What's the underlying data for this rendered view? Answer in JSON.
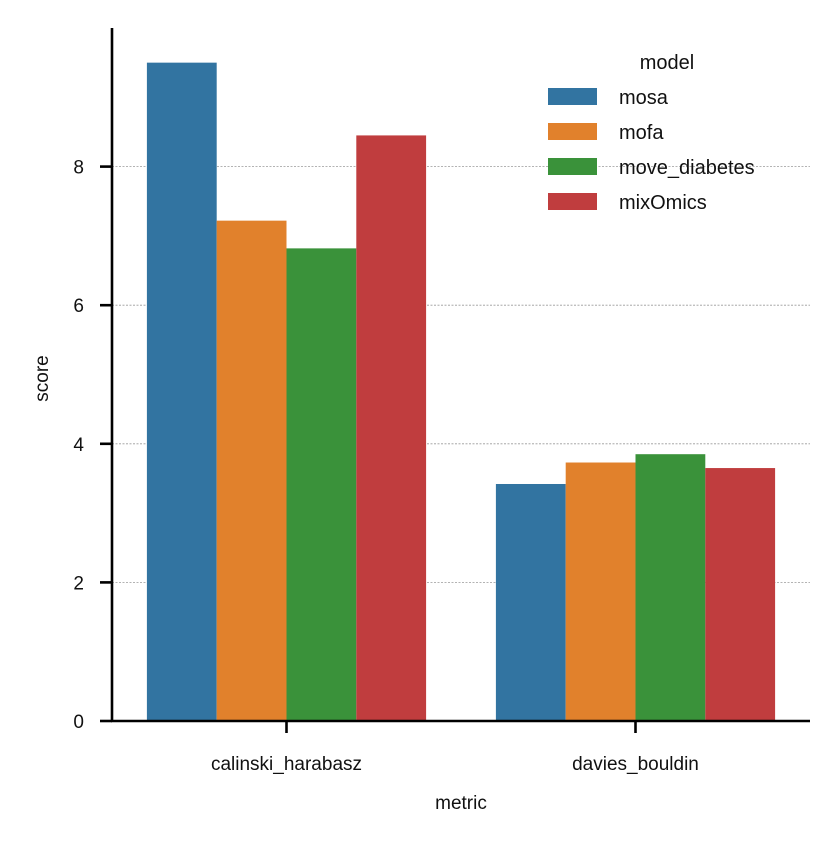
{
  "chart_data": {
    "type": "bar",
    "title": "",
    "xlabel": "metric",
    "ylabel": "score",
    "categories": [
      "calinski_harabasz",
      "davies_bouldin"
    ],
    "ylim": [
      0,
      10
    ],
    "yticks": [
      0,
      2,
      4,
      6,
      8
    ],
    "grid": true,
    "legend": {
      "title": "model",
      "placement": "top-right"
    },
    "series": [
      {
        "name": "mosa",
        "color": "#3274a1",
        "values": [
          9.5,
          3.42
        ]
      },
      {
        "name": "mofa",
        "color": "#e1812c",
        "values": [
          7.22,
          3.73
        ]
      },
      {
        "name": "move_diabetes",
        "color": "#3a923a",
        "values": [
          6.82,
          3.85
        ]
      },
      {
        "name": "mixOmics",
        "color": "#c03d3e",
        "values": [
          8.45,
          3.65
        ]
      }
    ]
  }
}
